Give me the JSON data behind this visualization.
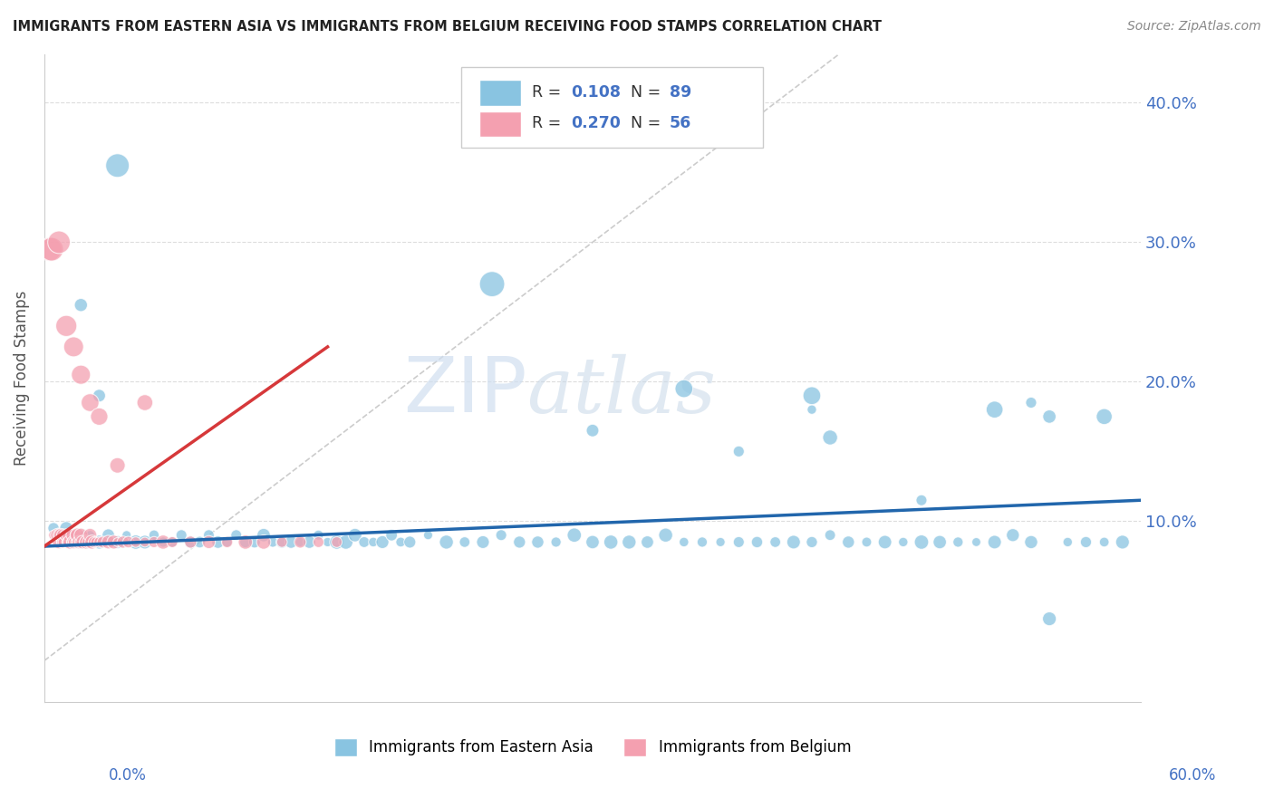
{
  "title": "IMMIGRANTS FROM EASTERN ASIA VS IMMIGRANTS FROM BELGIUM RECEIVING FOOD STAMPS CORRELATION CHART",
  "source": "Source: ZipAtlas.com",
  "ylabel": "Receiving Food Stamps",
  "xlim": [
    0.0,
    0.6
  ],
  "ylim": [
    -0.03,
    0.435
  ],
  "color_blue": "#89c4e1",
  "color_pink": "#f4a0b0",
  "color_blue_line": "#2166ac",
  "color_pink_line": "#d6383a",
  "color_diag_line": "#cccccc",
  "watermark_zip": "ZIP",
  "watermark_atlas": "atlas",
  "series1_label": "Immigrants from Eastern Asia",
  "series2_label": "Immigrants from Belgium",
  "legend_text1": "R = 0.108   N = 89",
  "legend_text2": "R = 0.270   N = 56",
  "blue_trend_x": [
    0.0,
    0.6
  ],
  "blue_trend_y": [
    0.082,
    0.115
  ],
  "pink_trend_x": [
    0.0,
    0.155
  ],
  "pink_trend_y": [
    0.082,
    0.225
  ],
  "diag_line_x": [
    0.0,
    0.435
  ],
  "diag_line_y": [
    0.0,
    0.435
  ],
  "blue_x": [
    0.005,
    0.008,
    0.012,
    0.015,
    0.018,
    0.022,
    0.025,
    0.03,
    0.035,
    0.04,
    0.045,
    0.05,
    0.055,
    0.06,
    0.065,
    0.07,
    0.075,
    0.08,
    0.085,
    0.09,
    0.095,
    0.1,
    0.105,
    0.11,
    0.115,
    0.12,
    0.125,
    0.13,
    0.135,
    0.14,
    0.145,
    0.15,
    0.155,
    0.16,
    0.165,
    0.17,
    0.175,
    0.18,
    0.185,
    0.19,
    0.195,
    0.2,
    0.21,
    0.22,
    0.23,
    0.24,
    0.25,
    0.26,
    0.27,
    0.28,
    0.29,
    0.3,
    0.31,
    0.32,
    0.33,
    0.34,
    0.35,
    0.36,
    0.37,
    0.38,
    0.39,
    0.4,
    0.41,
    0.42,
    0.43,
    0.44,
    0.45,
    0.46,
    0.47,
    0.48,
    0.49,
    0.5,
    0.51,
    0.52,
    0.53,
    0.54,
    0.55,
    0.56,
    0.57,
    0.58,
    0.59,
    0.3,
    0.38,
    0.42,
    0.48,
    0.54,
    0.02,
    0.03,
    0.04
  ],
  "blue_y": [
    0.095,
    0.09,
    0.095,
    0.09,
    0.085,
    0.09,
    0.09,
    0.085,
    0.09,
    0.085,
    0.09,
    0.085,
    0.085,
    0.09,
    0.085,
    0.085,
    0.09,
    0.085,
    0.085,
    0.09,
    0.085,
    0.085,
    0.09,
    0.085,
    0.085,
    0.09,
    0.085,
    0.085,
    0.085,
    0.085,
    0.085,
    0.09,
    0.085,
    0.085,
    0.085,
    0.09,
    0.085,
    0.085,
    0.085,
    0.09,
    0.085,
    0.085,
    0.09,
    0.085,
    0.085,
    0.085,
    0.09,
    0.085,
    0.085,
    0.085,
    0.09,
    0.085,
    0.085,
    0.085,
    0.085,
    0.09,
    0.085,
    0.085,
    0.085,
    0.085,
    0.085,
    0.085,
    0.085,
    0.085,
    0.09,
    0.085,
    0.085,
    0.085,
    0.085,
    0.085,
    0.085,
    0.085,
    0.085,
    0.085,
    0.09,
    0.085,
    0.175,
    0.085,
    0.085,
    0.085,
    0.085,
    0.165,
    0.15,
    0.18,
    0.115,
    0.185,
    0.255,
    0.19,
    0.355
  ],
  "blue_x_special": [
    0.245,
    0.35,
    0.42,
    0.52,
    0.58,
    0.55,
    0.43
  ],
  "blue_y_special": [
    0.27,
    0.195,
    0.19,
    0.18,
    0.175,
    0.03,
    0.16
  ],
  "blue_sizes_special": [
    400,
    200,
    200,
    180,
    160,
    120,
    140
  ],
  "pink_x": [
    0.003,
    0.005,
    0.007,
    0.008,
    0.008,
    0.009,
    0.01,
    0.01,
    0.01,
    0.01,
    0.011,
    0.012,
    0.012,
    0.013,
    0.013,
    0.014,
    0.015,
    0.015,
    0.016,
    0.016,
    0.017,
    0.017,
    0.018,
    0.018,
    0.019,
    0.02,
    0.02,
    0.021,
    0.022,
    0.023,
    0.024,
    0.025,
    0.026,
    0.027,
    0.028,
    0.03,
    0.032,
    0.035,
    0.038,
    0.04,
    0.043,
    0.046,
    0.05,
    0.055,
    0.06,
    0.065,
    0.07,
    0.08,
    0.09,
    0.1,
    0.11,
    0.12,
    0.13,
    0.14,
    0.15,
    0.16
  ],
  "pink_y": [
    0.295,
    0.09,
    0.09,
    0.085,
    0.09,
    0.09,
    0.085,
    0.09,
    0.085,
    0.085,
    0.09,
    0.085,
    0.09,
    0.085,
    0.09,
    0.085,
    0.085,
    0.09,
    0.085,
    0.085,
    0.085,
    0.09,
    0.085,
    0.09,
    0.085,
    0.085,
    0.09,
    0.085,
    0.085,
    0.085,
    0.085,
    0.09,
    0.085,
    0.085,
    0.085,
    0.085,
    0.085,
    0.085,
    0.085,
    0.085,
    0.085,
    0.085,
    0.085,
    0.085,
    0.085,
    0.085,
    0.085,
    0.085,
    0.085,
    0.085,
    0.085,
    0.085,
    0.085,
    0.085,
    0.085,
    0.085
  ],
  "pink_x_special": [
    0.004,
    0.008,
    0.012,
    0.016,
    0.02,
    0.025,
    0.03,
    0.04,
    0.055
  ],
  "pink_y_special": [
    0.295,
    0.3,
    0.24,
    0.225,
    0.205,
    0.185,
    0.175,
    0.14,
    0.185
  ],
  "pink_sizes_special": [
    350,
    320,
    280,
    250,
    230,
    200,
    190,
    150,
    160
  ]
}
